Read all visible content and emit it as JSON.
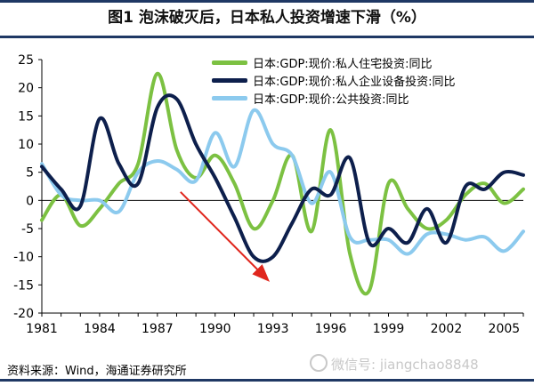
{
  "chart_data": {
    "type": "line",
    "title": "图1   泡沫破灭后，日本私人投资增速下滑（%）",
    "xlabel": "",
    "ylabel": "",
    "x_range": [
      1981,
      2006
    ],
    "ylim": [
      -20,
      25
    ],
    "y_ticks": [
      -20,
      -15,
      -10,
      -5,
      0,
      5,
      10,
      15,
      20,
      25
    ],
    "x_ticks": [
      1981,
      1984,
      1987,
      1990,
      1993,
      1996,
      1999,
      2002,
      2005
    ],
    "grid": false,
    "legend_position": "top-right",
    "series": [
      {
        "name": "日本:GDP:现价:私人住宅投资:同比",
        "color": "#7cc142",
        "x": [
          1981,
          1982,
          1983,
          1984,
          1985,
          1986,
          1987,
          1988,
          1989,
          1990,
          1991,
          1992,
          1993,
          1994,
          1995,
          1996,
          1997,
          1998,
          1999,
          2000,
          2001,
          2002,
          2003,
          2004,
          2005,
          2006
        ],
        "values": [
          -3.5,
          1,
          -4.5,
          -1.5,
          3,
          6.5,
          22.5,
          9,
          4,
          8,
          3,
          -5,
          0,
          8,
          -5.5,
          12.5,
          -9.5,
          -16,
          3,
          -1.5,
          -5,
          -3.5,
          1,
          3,
          -0.5,
          2
        ]
      },
      {
        "name": "日本:GDP:现价:私人企业设备投资:同比",
        "color": "#0d1f4c",
        "x": [
          1981,
          1982,
          1983,
          1984,
          1985,
          1986,
          1987,
          1988,
          1989,
          1990,
          1991,
          1992,
          1993,
          1994,
          1995,
          1996,
          1997,
          1998,
          1999,
          2000,
          2001,
          2002,
          2003,
          2004,
          2005,
          2006
        ],
        "values": [
          6,
          2,
          -1,
          14.5,
          6.5,
          3,
          16.5,
          18,
          10,
          4,
          -3,
          -10,
          -10,
          -4,
          2,
          1,
          7.5,
          -7.5,
          -5,
          -7.5,
          -1.5,
          -7.5,
          2.5,
          2,
          5,
          4.5
        ]
      },
      {
        "name": "日本:GDP:现价:公共投资:同比",
        "color": "#8ccaee",
        "x": [
          1981,
          1982,
          1983,
          1984,
          1985,
          1986,
          1987,
          1988,
          1989,
          1990,
          1991,
          1992,
          1993,
          1994,
          1995,
          1996,
          1997,
          1998,
          1999,
          2000,
          2001,
          2002,
          2003,
          2004,
          2005,
          2006
        ],
        "values": [
          6.5,
          1,
          0,
          0,
          -2,
          5,
          7,
          5.5,
          3.5,
          12,
          6,
          16,
          10,
          8,
          -0.5,
          5,
          -6.5,
          -7,
          -7,
          -9.5,
          -6,
          -6,
          -7,
          -6.5,
          -9,
          -5.5
        ]
      }
    ],
    "annotations": [
      {
        "type": "arrow",
        "color": "#e0261d",
        "from": [
          1988.2,
          1.5
        ],
        "to": [
          1992.7,
          -14
        ]
      }
    ]
  },
  "source_text": "资料来源：Wind，海通证券研究所",
  "watermark_text": "微信号: jiangchao8848"
}
